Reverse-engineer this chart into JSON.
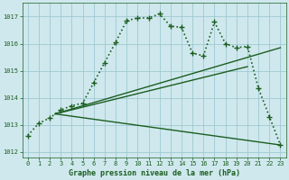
{
  "title": "Graphe pression niveau de la mer (hPa)",
  "background_color": "#cfe8ed",
  "grid_color": "#9fc8d2",
  "line_color": "#1a5e20",
  "xlim": [
    -0.5,
    23.5
  ],
  "ylim": [
    1011.8,
    1017.5
  ],
  "yticks": [
    1012,
    1013,
    1014,
    1015,
    1016,
    1017
  ],
  "xticks": [
    0,
    1,
    2,
    3,
    4,
    5,
    6,
    7,
    8,
    9,
    10,
    11,
    12,
    13,
    14,
    15,
    16,
    17,
    18,
    19,
    20,
    21,
    22,
    23
  ],
  "series": [
    {
      "x": [
        0,
        1,
        2,
        3,
        4,
        5,
        6,
        7,
        8,
        9,
        10,
        11,
        12,
        13,
        14,
        15,
        16,
        17,
        18,
        19,
        20,
        21,
        22,
        23
      ],
      "y": [
        1012.6,
        1013.05,
        1013.25,
        1013.55,
        1013.7,
        1013.8,
        1014.55,
        1015.3,
        1016.05,
        1016.85,
        1016.95,
        1016.95,
        1017.1,
        1016.65,
        1016.6,
        1015.65,
        1015.55,
        1016.8,
        1016.0,
        1015.85,
        1015.9,
        1014.35,
        1013.3,
        1012.25
      ],
      "style": ":",
      "marker": "+",
      "markersize": 4,
      "linewidth": 1.2,
      "zorder": 3
    },
    {
      "x": [
        2.5,
        23
      ],
      "y": [
        1013.4,
        1015.85
      ],
      "style": "-",
      "marker": null,
      "linewidth": 1.0,
      "zorder": 2
    },
    {
      "x": [
        2.5,
        20
      ],
      "y": [
        1013.4,
        1015.15
      ],
      "style": "-",
      "marker": null,
      "linewidth": 1.0,
      "zorder": 2
    },
    {
      "x": [
        2.5,
        23
      ],
      "y": [
        1013.4,
        1012.25
      ],
      "style": "-",
      "marker": null,
      "linewidth": 1.0,
      "zorder": 2
    }
  ]
}
